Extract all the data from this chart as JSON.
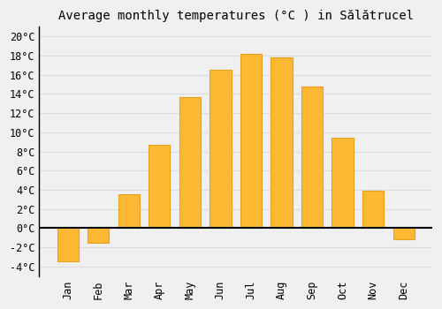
{
  "months": [
    "Jan",
    "Feb",
    "Mar",
    "Apr",
    "May",
    "Jun",
    "Jul",
    "Aug",
    "Sep",
    "Oct",
    "Nov",
    "Dec"
  ],
  "values": [
    -3.5,
    -1.5,
    3.5,
    8.7,
    13.7,
    16.5,
    18.2,
    17.8,
    14.8,
    9.4,
    3.9,
    -1.2
  ],
  "bar_color": "#FDB933",
  "bar_edge_color": "#E8A020",
  "title": "Average monthly temperatures (°C ) in Sălătrucel",
  "ylim": [
    -5,
    21
  ],
  "yticks": [
    -4,
    -2,
    0,
    2,
    4,
    6,
    8,
    10,
    12,
    14,
    16,
    18,
    20
  ],
  "background_color": "#f0f0f0",
  "grid_color": "#dddddd",
  "title_fontsize": 10,
  "tick_fontsize": 8.5,
  "bar_width": 0.7
}
